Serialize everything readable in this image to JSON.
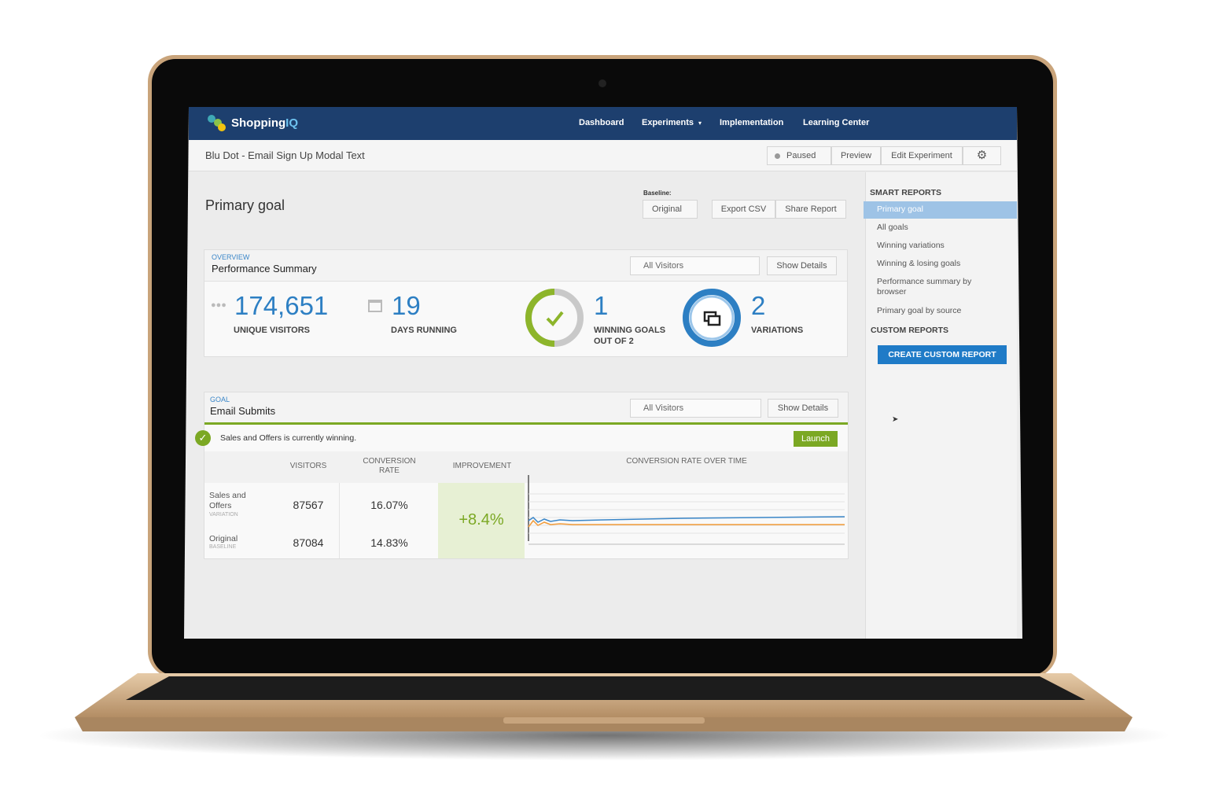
{
  "nav": {
    "brand_a": "Shopping",
    "brand_b": "IQ",
    "links": [
      "Dashboard",
      "Experiments",
      "Implementation",
      "Learning Center"
    ]
  },
  "experiment": {
    "title": "Blu Dot - Email Sign Up Modal Text",
    "status": "Paused",
    "actions": [
      "Preview",
      "Edit Experiment"
    ]
  },
  "report": {
    "heading": "Primary goal",
    "baseline_label": "Baseline:",
    "baseline": "Original",
    "buttons": [
      "Export CSV",
      "Share Report"
    ]
  },
  "overview": {
    "kicker": "OVERVIEW",
    "title": "Performance Summary",
    "filter": "All Visitors",
    "details": "Show Details",
    "stats": [
      {
        "value": "174,651",
        "label": "UNIQUE VISITORS"
      },
      {
        "value": "19",
        "label": "DAYS RUNNING"
      },
      {
        "value": "1",
        "label": "WINNING GOALS OUT OF 2"
      },
      {
        "value": "2",
        "label": "VARIATIONS"
      }
    ]
  },
  "goal": {
    "kicker": "GOAL",
    "title": "Email Submits",
    "filter": "All Visitors",
    "details": "Show Details",
    "banner": "Sales and Offers is currently winning.",
    "launch": "Launch",
    "columns": [
      "VISITORS",
      "CONVERSION RATE",
      "IMPROVEMENT",
      "CONVERSION RATE OVER TIME"
    ],
    "rows": [
      {
        "name": "Sales and Offers",
        "tag": "VARIATION",
        "visitors": "87567",
        "rate": "16.07%"
      },
      {
        "name": "Original",
        "tag": "BASELINE",
        "visitors": "87084",
        "rate": "14.83%"
      }
    ],
    "improvement": "+8.4%"
  },
  "sidebar": {
    "smart_heading": "SMART REPORTS",
    "smart": [
      "Primary goal",
      "All goals",
      "Winning variations",
      "Winning & losing goals",
      "Performance summary by browser",
      "Primary goal by source"
    ],
    "custom_heading": "CUSTOM REPORTS",
    "create": "CREATE CUSTOM REPORT"
  }
}
